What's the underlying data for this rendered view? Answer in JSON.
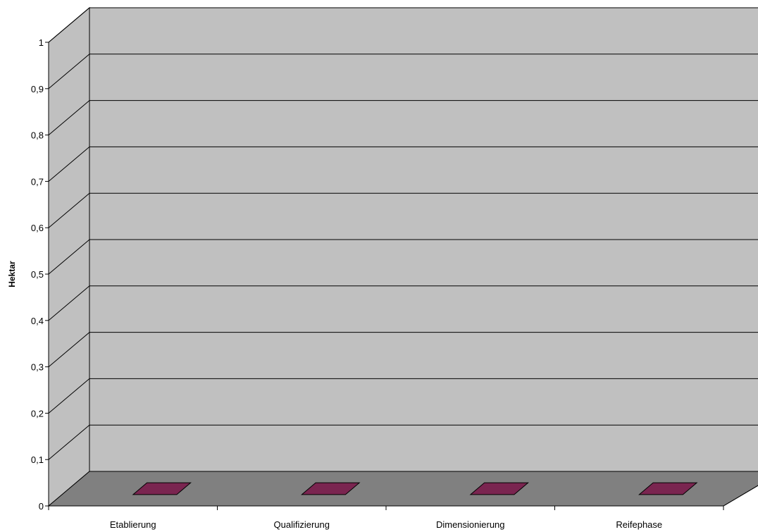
{
  "chart_data": {
    "type": "bar",
    "categories": [
      "Etablierung",
      "Qualifizierung",
      "Dimensionierung",
      "Reifephase"
    ],
    "series": [
      {
        "values": [
          0,
          0,
          0,
          0
        ]
      }
    ],
    "title": "",
    "xlabel": "",
    "ylabel": "Hektar",
    "ylim": [
      0,
      1
    ],
    "yticks": [
      "0",
      "0,1",
      "0,2",
      "0,3",
      "0,4",
      "0,5",
      "0,6",
      "0,7",
      "0,8",
      "0,9",
      "1"
    ],
    "grid": true,
    "legend": "none",
    "three_d": true,
    "colors": {
      "wall": "#C0C0C0",
      "floor": "#808080",
      "bar": "#7A2550",
      "grid": "#000000"
    }
  }
}
